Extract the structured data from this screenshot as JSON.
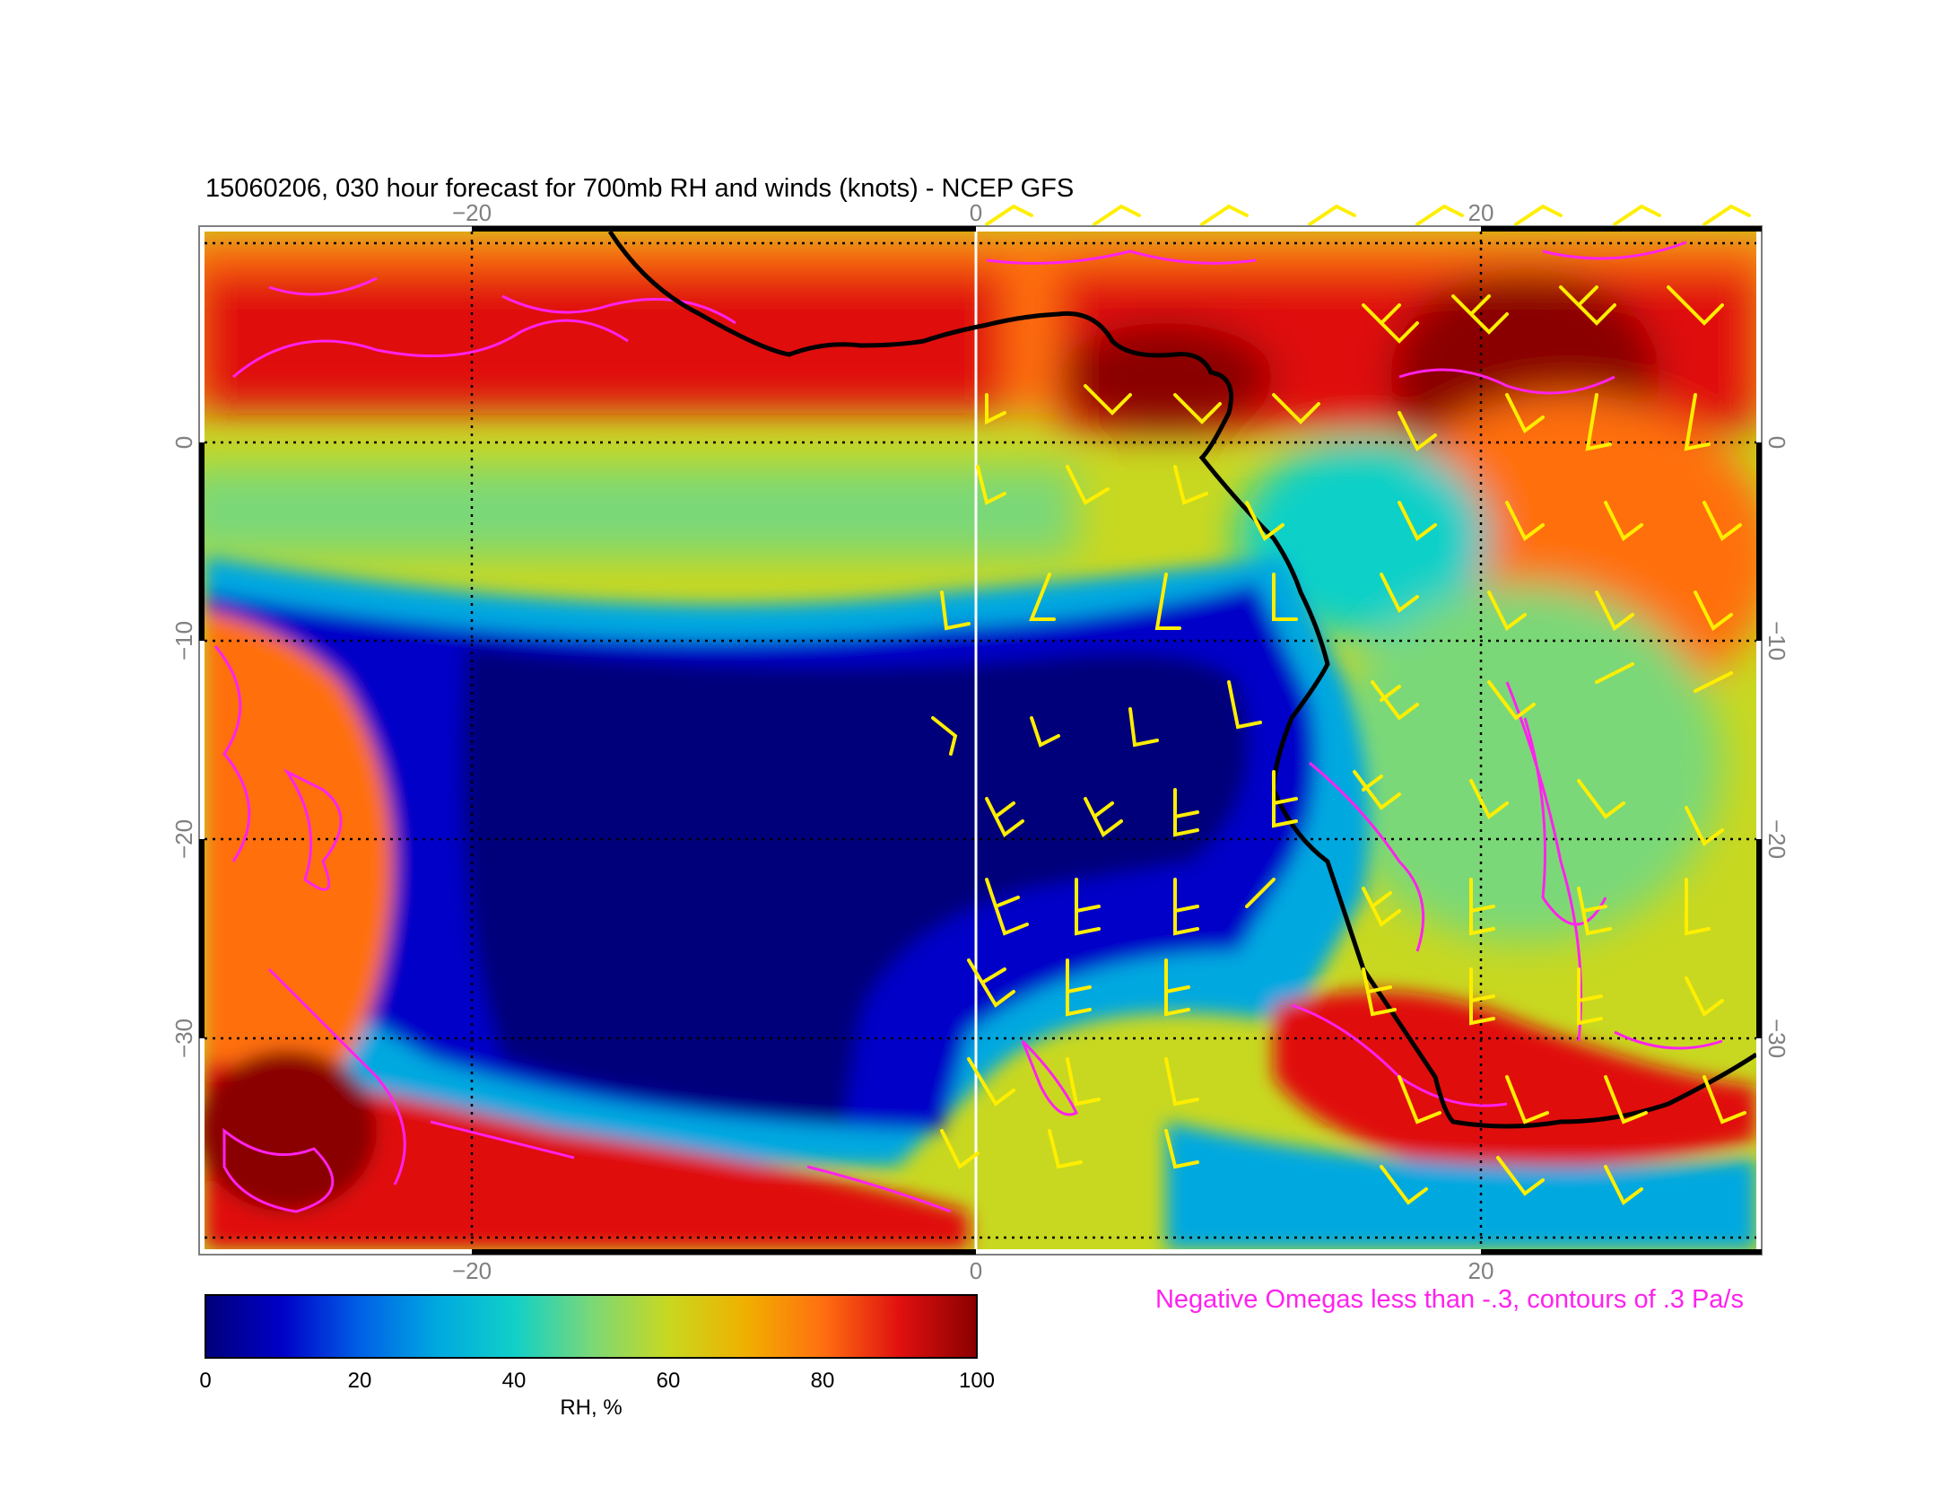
{
  "title": "15060206, 030 hour forecast for 700mb RH and winds (knots) - NCEP GFS",
  "map": {
    "lon_ticks": [
      "−20",
      "0",
      "20"
    ],
    "lat_ticks": [
      "0",
      "−10",
      "−20",
      "−30"
    ],
    "lon_values": [
      -20,
      0,
      20
    ],
    "lat_values": [
      0,
      -10,
      -20,
      -30
    ],
    "lon_range": [
      -30.5,
      30.5
    ],
    "lat_range": [
      10.5,
      -40.5
    ],
    "rh_colors": [
      "#00007a",
      "#0000c8",
      "#0060e6",
      "#00a8e0",
      "#10d0c8",
      "#7ad878",
      "#c8d820",
      "#f0b000",
      "#ff7010",
      "#e01010",
      "#8a0000"
    ]
  },
  "colorbar": {
    "label": "RH, %",
    "ticks": [
      "0",
      "20",
      "40",
      "60",
      "80",
      "100"
    ],
    "tick_values": [
      0,
      20,
      40,
      60,
      80,
      100
    ],
    "colors": [
      "#00007a",
      "#0000c8",
      "#0060e6",
      "#00a8e0",
      "#10d0c8",
      "#7ad878",
      "#c8d820",
      "#f0b000",
      "#ff7010",
      "#e01010",
      "#8a0000"
    ]
  },
  "omega_note": "Negative Omegas less than -.3, contours of .3 Pa/s",
  "overlay_colors": {
    "omega": "#ff22ee",
    "wind_barbs": "#ffee00",
    "coastline": "#000000",
    "prime_meridian": "#ffffff"
  }
}
